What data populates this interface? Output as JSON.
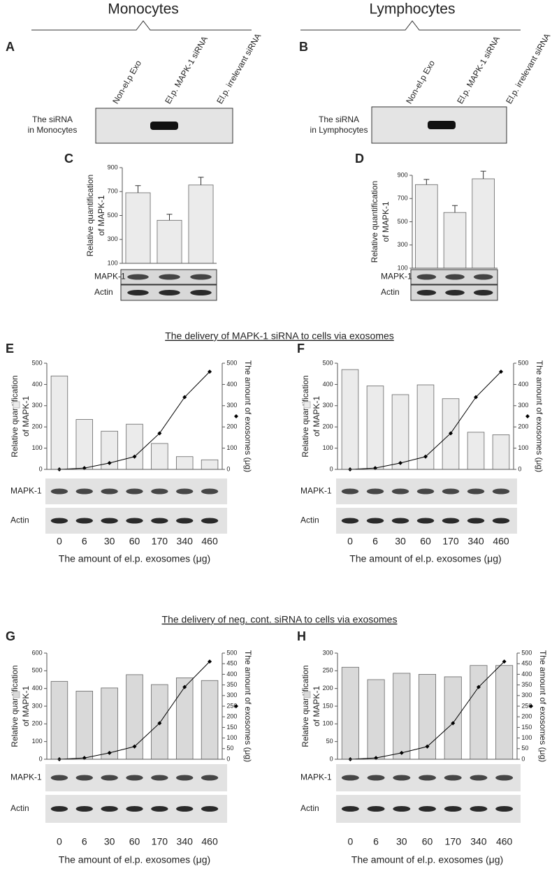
{
  "groups": [
    {
      "title": "Monocytes"
    },
    {
      "title": "Lymphocytes"
    }
  ],
  "sections": [
    "The delivery of MAPK-1 siRNA to cells via exosomes",
    "The delivery of neg. cont. siRNA to cells via exosomes"
  ],
  "sirna_panels": [
    {
      "letter": "A",
      "lanes": [
        "Non-el.p Exo",
        "El.p. MAPK-1 siRNA",
        "El.p. irrelevant siRNA"
      ],
      "label": [
        "The siRNA",
        "in Monocytes"
      ]
    },
    {
      "letter": "B",
      "lanes": [
        "Non-el.p Exo",
        "El.p. MAPK-1 siRNA",
        "El.p. irrelevant siRNA"
      ],
      "label": [
        "The siRNA",
        "in Lymphocytes"
      ]
    }
  ],
  "chart_data": [
    {
      "type": "bar",
      "letter": "C",
      "ylabel": [
        "Relative quantification",
        "of MAPK-1"
      ],
      "values": [
        690,
        460,
        755
      ],
      "errors": [
        60,
        50,
        65
      ],
      "color": "#ebebeb",
      "ylim": [
        100,
        900
      ],
      "yticks": [
        100,
        300,
        500,
        700,
        900
      ],
      "blot_rows": [
        "MAPK-1",
        "Actin"
      ]
    },
    {
      "type": "bar",
      "letter": "D",
      "ylabel": [
        "Relative quantification",
        "of MAPK-1"
      ],
      "values": [
        820,
        580,
        870
      ],
      "errors": [
        45,
        60,
        65
      ],
      "color": "#ebebeb",
      "ylim": [
        100,
        900
      ],
      "yticks": [
        100,
        300,
        500,
        700,
        900
      ],
      "blot_rows": [
        "MAPK-1",
        "Actin"
      ]
    },
    {
      "type": "bar_line",
      "letter": "E",
      "ylabel": [
        "Relative quantification",
        "of MAPK-1"
      ],
      "y2label": "The amount of exosomes (μg)",
      "xlabel": "The amount of el.p. exosomes (μg)",
      "categories": [
        "0",
        "6",
        "30",
        "60",
        "170",
        "340",
        "460"
      ],
      "series": [
        {
          "values": [
            440,
            235,
            180,
            213,
            122,
            60,
            45
          ],
          "color": "#ebebeb"
        },
        {
          "values": [
            0,
            6,
            30,
            60,
            170,
            340,
            460
          ],
          "color": "#000000",
          "axis": "y2"
        }
      ],
      "ylim": [
        0,
        500
      ],
      "yticks": [
        0,
        100,
        200,
        300,
        400,
        500
      ],
      "y2lim": [
        0,
        500
      ],
      "y2ticks": [
        0,
        100,
        200,
        300,
        400,
        500
      ],
      "blot_rows": [
        "MAPK-1",
        "Actin"
      ]
    },
    {
      "type": "bar_line",
      "letter": "F",
      "ylabel": [
        "Relative quantification",
        "of MAPK-1"
      ],
      "y2label": "The amount of exosomes (μg)",
      "xlabel": "The amount of el.p. exosomes (μg)",
      "categories": [
        "0",
        "6",
        "30",
        "60",
        "170",
        "340",
        "460"
      ],
      "series": [
        {
          "values": [
            470,
            393,
            352,
            398,
            333,
            175,
            163
          ],
          "color": "#ebebeb"
        },
        {
          "values": [
            0,
            6,
            30,
            60,
            170,
            340,
            460
          ],
          "color": "#000000",
          "axis": "y2"
        }
      ],
      "ylim": [
        0,
        500
      ],
      "yticks": [
        0,
        100,
        200,
        300,
        400,
        500
      ],
      "y2lim": [
        0,
        500
      ],
      "y2ticks": [
        0,
        100,
        200,
        300,
        400,
        500
      ],
      "blot_rows": [
        "MAPK-1",
        "Actin"
      ]
    },
    {
      "type": "bar_line",
      "letter": "G",
      "ylabel": [
        "Relative quantification",
        "of MAPK-1"
      ],
      "y2label": "The amount of exosomes (μg)",
      "xlabel": "The amount of el.p. exosomes (μg)",
      "categories": [
        "0",
        "6",
        "30",
        "60",
        "170",
        "340",
        "460"
      ],
      "series": [
        {
          "values": [
            440,
            385,
            403,
            478,
            422,
            460,
            445
          ],
          "color": "#d9d9d9"
        },
        {
          "values": [
            0,
            6,
            30,
            60,
            170,
            340,
            460
          ],
          "color": "#000000",
          "axis": "y2"
        }
      ],
      "ylim": [
        0,
        600
      ],
      "yticks": [
        0,
        100,
        200,
        300,
        400,
        500,
        600
      ],
      "y2lim": [
        0,
        500
      ],
      "y2ticks": [
        0,
        50,
        100,
        150,
        200,
        250,
        300,
        350,
        400,
        450,
        500
      ],
      "blot_rows": [
        "MAPK-1",
        "Actin"
      ]
    },
    {
      "type": "bar_line",
      "letter": "H",
      "ylabel": [
        "Relative quantification",
        "of MAPK-1"
      ],
      "y2label": "The amount of exosomes (μg)",
      "xlabel": "The amount of el.p. exosomes (μg)",
      "categories": [
        "0",
        "6",
        "30",
        "60",
        "170",
        "340",
        "460"
      ],
      "series": [
        {
          "values": [
            260,
            225,
            243,
            240,
            233,
            265,
            265
          ],
          "color": "#d9d9d9"
        },
        {
          "values": [
            0,
            6,
            30,
            60,
            170,
            340,
            460
          ],
          "color": "#000000",
          "axis": "y2"
        }
      ],
      "ylim": [
        0,
        300
      ],
      "yticks": [
        0,
        50,
        100,
        150,
        200,
        250,
        300
      ],
      "y2lim": [
        0,
        500
      ],
      "y2ticks": [
        0,
        50,
        100,
        150,
        200,
        250,
        300,
        350,
        400,
        450,
        500
      ],
      "blot_rows": [
        "MAPK-1",
        "Actin"
      ]
    }
  ]
}
